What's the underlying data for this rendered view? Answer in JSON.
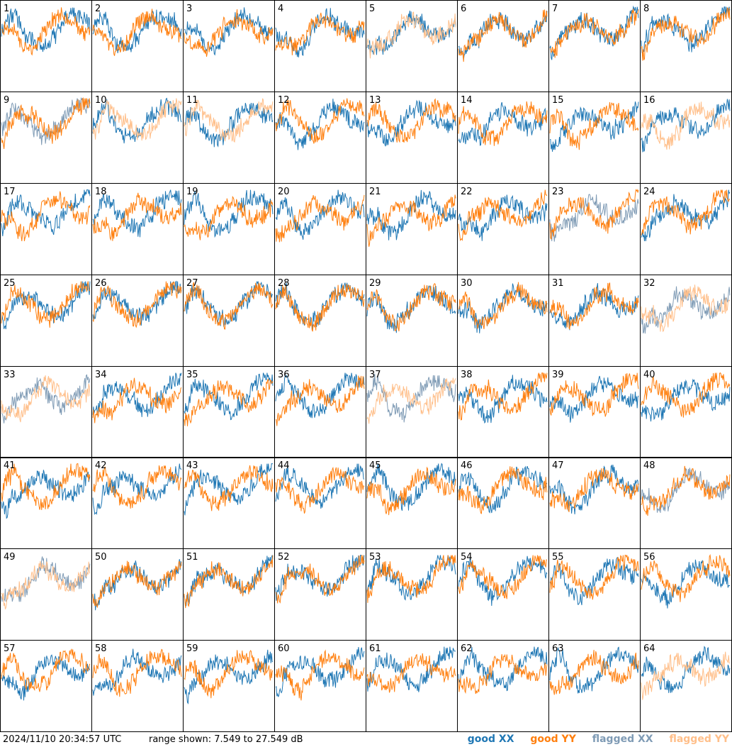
{
  "colors": {
    "good_xx": "#1f77b4",
    "good_yy": "#ff7f0e",
    "flagged_xx": "#7f9bb5",
    "flagged_yy": "#ffbf8a",
    "grid": "#000000",
    "background": "#ffffff"
  },
  "footer": {
    "timestamp": "2024/11/10 20:34:57 UTC",
    "range_text": "range shown: 7.549 to 27.549 dB",
    "legend": {
      "good_xx": "good XX",
      "good_yy": "good YY",
      "flagged_xx": "flagged XX",
      "flagged_yy": "flagged YY"
    }
  },
  "chart_data": {
    "type": "line",
    "y_unit": "dB",
    "ylim": [
      7.549,
      27.549
    ],
    "grid": {
      "rows": 8,
      "cols": 8
    },
    "panels": [
      {
        "id": 1,
        "xx": "good",
        "yy": "good"
      },
      {
        "id": 2,
        "xx": "good",
        "yy": "good"
      },
      {
        "id": 3,
        "xx": "good",
        "yy": "good"
      },
      {
        "id": 4,
        "xx": "good",
        "yy": "good"
      },
      {
        "id": 5,
        "xx": "good",
        "yy": "flagged"
      },
      {
        "id": 6,
        "xx": "good",
        "yy": "good"
      },
      {
        "id": 7,
        "xx": "good",
        "yy": "good"
      },
      {
        "id": 8,
        "xx": "good",
        "yy": "good"
      },
      {
        "id": 9,
        "xx": "flagged",
        "yy": "good"
      },
      {
        "id": 10,
        "xx": "good",
        "yy": "flagged"
      },
      {
        "id": 11,
        "xx": "good",
        "yy": "flagged"
      },
      {
        "id": 12,
        "xx": "good",
        "yy": "good"
      },
      {
        "id": 13,
        "xx": "good",
        "yy": "good"
      },
      {
        "id": 14,
        "xx": "good",
        "yy": "good"
      },
      {
        "id": 15,
        "xx": "good",
        "yy": "good"
      },
      {
        "id": 16,
        "xx": "good",
        "yy": "flagged"
      },
      {
        "id": 17,
        "xx": "good",
        "yy": "good"
      },
      {
        "id": 18,
        "xx": "good",
        "yy": "good"
      },
      {
        "id": 19,
        "xx": "good",
        "yy": "good"
      },
      {
        "id": 20,
        "xx": "good",
        "yy": "good"
      },
      {
        "id": 21,
        "xx": "good",
        "yy": "good"
      },
      {
        "id": 22,
        "xx": "good",
        "yy": "good"
      },
      {
        "id": 23,
        "xx": "flagged",
        "yy": "good"
      },
      {
        "id": 24,
        "xx": "good",
        "yy": "good"
      },
      {
        "id": 25,
        "xx": "good",
        "yy": "good"
      },
      {
        "id": 26,
        "xx": "good",
        "yy": "good"
      },
      {
        "id": 27,
        "xx": "good",
        "yy": "good"
      },
      {
        "id": 28,
        "xx": "good",
        "yy": "good"
      },
      {
        "id": 29,
        "xx": "good",
        "yy": "good"
      },
      {
        "id": 30,
        "xx": "good",
        "yy": "good"
      },
      {
        "id": 31,
        "xx": "good",
        "yy": "good"
      },
      {
        "id": 32,
        "xx": "flagged",
        "yy": "flagged"
      },
      {
        "id": 33,
        "xx": "flagged",
        "yy": "flagged"
      },
      {
        "id": 34,
        "xx": "good",
        "yy": "good"
      },
      {
        "id": 35,
        "xx": "good",
        "yy": "good"
      },
      {
        "id": 36,
        "xx": "good",
        "yy": "good"
      },
      {
        "id": 37,
        "xx": "flagged",
        "yy": "flagged"
      },
      {
        "id": 38,
        "xx": "good",
        "yy": "good"
      },
      {
        "id": 39,
        "xx": "good",
        "yy": "good"
      },
      {
        "id": 40,
        "xx": "good",
        "yy": "good"
      },
      {
        "id": 41,
        "xx": "good",
        "yy": "good"
      },
      {
        "id": 42,
        "xx": "good",
        "yy": "good"
      },
      {
        "id": 43,
        "xx": "good",
        "yy": "good"
      },
      {
        "id": 44,
        "xx": "good",
        "yy": "good"
      },
      {
        "id": 45,
        "xx": "good",
        "yy": "good"
      },
      {
        "id": 46,
        "xx": "good",
        "yy": "good"
      },
      {
        "id": 47,
        "xx": "good",
        "yy": "good"
      },
      {
        "id": 48,
        "xx": "flagged",
        "yy": "good"
      },
      {
        "id": 49,
        "xx": "flagged",
        "yy": "flagged"
      },
      {
        "id": 50,
        "xx": "good",
        "yy": "good"
      },
      {
        "id": 51,
        "xx": "good",
        "yy": "good"
      },
      {
        "id": 52,
        "xx": "good",
        "yy": "good"
      },
      {
        "id": 53,
        "xx": "good",
        "yy": "good"
      },
      {
        "id": 54,
        "xx": "good",
        "yy": "good"
      },
      {
        "id": 55,
        "xx": "good",
        "yy": "good"
      },
      {
        "id": 56,
        "xx": "good",
        "yy": "good"
      },
      {
        "id": 57,
        "xx": "good",
        "yy": "good"
      },
      {
        "id": 58,
        "xx": "good",
        "yy": "good"
      },
      {
        "id": 59,
        "xx": "good",
        "yy": "good"
      },
      {
        "id": 60,
        "xx": "good",
        "yy": "good"
      },
      {
        "id": 61,
        "xx": "good",
        "yy": "good"
      },
      {
        "id": 62,
        "xx": "good",
        "yy": "good"
      },
      {
        "id": 63,
        "xx": "good",
        "yy": "good"
      },
      {
        "id": 64,
        "xx": "good",
        "yy": "flagged"
      }
    ]
  }
}
